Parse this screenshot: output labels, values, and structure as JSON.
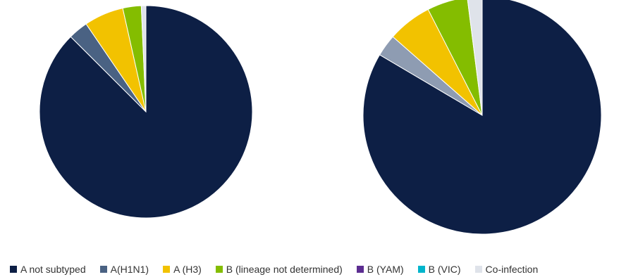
{
  "chart_data": [
    {
      "type": "pie",
      "slices": [
        {
          "label": "A not subtyped",
          "value": 87.5,
          "color": "#0d1f45"
        },
        {
          "label": "A(H1N1)",
          "value": 3.0,
          "color": "#4a6283"
        },
        {
          "label": "A (H3)",
          "value": 6.0,
          "color": "#f2c200"
        },
        {
          "label": "B (lineage not determined)",
          "value": 2.8,
          "color": "#84bd00"
        },
        {
          "label": "B (YAM)",
          "value": 0,
          "color": "#5c2d91"
        },
        {
          "label": "B (VIC)",
          "value": 0,
          "color": "#00b5cc"
        },
        {
          "label": "Co-infection",
          "value": 0.7,
          "color": "#dfe3ea"
        }
      ]
    },
    {
      "type": "pie",
      "slices": [
        {
          "label": "A not subtyped",
          "value": 83.5,
          "color": "#0d1f45"
        },
        {
          "label": "A(H1N1)",
          "value": 3.0,
          "color": "#8e9cb2"
        },
        {
          "label": "A (H3)",
          "value": 6.0,
          "color": "#f2c200"
        },
        {
          "label": "B (lineage not determined)",
          "value": 5.5,
          "color": "#84bd00"
        },
        {
          "label": "B (YAM)",
          "value": 0,
          "color": "#5c2d91"
        },
        {
          "label": "B (VIC)",
          "value": 0,
          "color": "#00b5cc"
        },
        {
          "label": "Co-infection",
          "value": 2.0,
          "color": "#dfe3ea"
        }
      ]
    }
  ],
  "legend": {
    "placement": "bottom",
    "items": [
      {
        "label": "A not subtyped",
        "color": "#0d1f45"
      },
      {
        "label": "A(H1N1)",
        "color": "#4a6283"
      },
      {
        "label": "A (H3)",
        "color": "#f2c200"
      },
      {
        "label": "B (lineage not determined)",
        "color": "#84bd00"
      },
      {
        "label": "B (YAM)",
        "color": "#5c2d91"
      },
      {
        "label": "B (VIC)",
        "color": "#00b5cc"
      },
      {
        "label": "Co-infection",
        "color": "#dfe3ea"
      }
    ]
  }
}
